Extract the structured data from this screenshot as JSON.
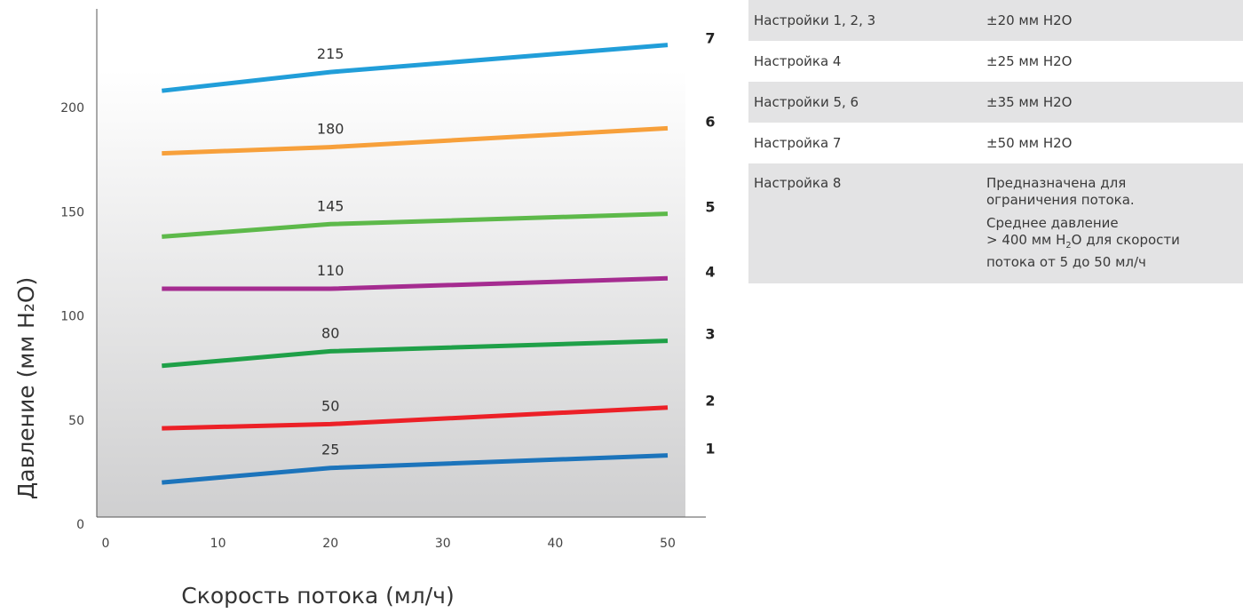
{
  "chart_data": {
    "type": "line",
    "xlabel": "Скорость потока (мл/ч)",
    "ylabel": "Давление (мм H₂O)",
    "xlim": [
      0,
      50
    ],
    "ylim": [
      0,
      250
    ],
    "x_ticks": [
      0,
      10,
      20,
      30,
      40,
      50
    ],
    "y_ticks": [
      0,
      50,
      100,
      150,
      200
    ],
    "grid": false,
    "x": [
      5,
      20,
      50
    ],
    "series": [
      {
        "name": "1",
        "mid_label": "25",
        "color": "#1c74bb",
        "values": [
          20,
          27,
          33
        ]
      },
      {
        "name": "2",
        "mid_label": "50",
        "color": "#ec2027",
        "values": [
          46,
          48,
          56
        ]
      },
      {
        "name": "3",
        "mid_label": "80",
        "color": "#1fa048",
        "values": [
          76,
          83,
          88
        ]
      },
      {
        "name": "4",
        "mid_label": "110",
        "color": "#a52c90",
        "values": [
          113,
          113,
          118
        ]
      },
      {
        "name": "5",
        "mid_label": "145",
        "color": "#5db94a",
        "values": [
          138,
          144,
          149
        ]
      },
      {
        "name": "6",
        "mid_label": "180",
        "color": "#f7a03b",
        "values": [
          178,
          181,
          190
        ]
      },
      {
        "name": "7",
        "mid_label": "215",
        "color": "#219ed9",
        "values": [
          208,
          217,
          230
        ]
      }
    ]
  },
  "settings_table": {
    "rows": [
      {
        "label": "Настройки 1, 2, 3",
        "value": "±20 мм H2O"
      },
      {
        "label": "Настройка 4",
        "value": "±25 мм H2O"
      },
      {
        "label": "Настройки 5, 6",
        "value": "±35 мм H2O"
      },
      {
        "label": "Настройка 7",
        "value": "±50 мм H2O"
      }
    ],
    "row8": {
      "label": "Настройка 8",
      "line1": "Предназначена для",
      "line2": "ограничения потока.",
      "p2_line1": "Среднее давление",
      "p2_pre": "> 400 мм H",
      "p2_sub": "2",
      "p2_post": "O для скорости",
      "p2_line3": "потока от 5 до 50 мл/ч"
    }
  }
}
